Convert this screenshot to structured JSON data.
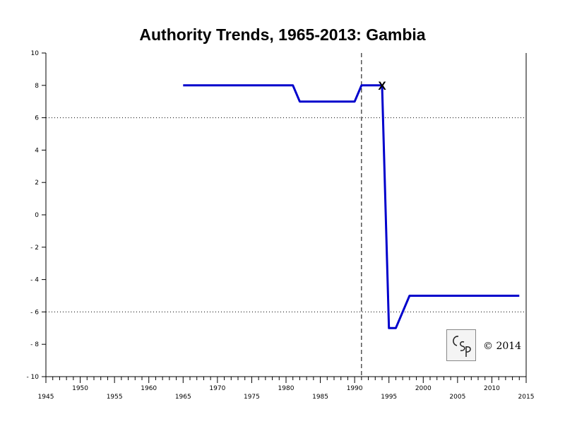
{
  "chart_data": {
    "type": "line",
    "title": "Authority Trends, 1965-2013: Gambia",
    "xlabel": "",
    "ylabel": "",
    "xlim": [
      1945,
      2015
    ],
    "ylim": [
      -10,
      10
    ],
    "x_ticks_lower": [
      1945,
      1955,
      1965,
      1975,
      1985,
      1995,
      2005,
      2015
    ],
    "x_ticks_upper": [
      1950,
      1960,
      1970,
      1980,
      1990,
      2000,
      2010
    ],
    "y_ticks": [
      10,
      8,
      6,
      4,
      2,
      0,
      -2,
      -4,
      -6,
      -8,
      -10
    ],
    "reference_lines_y": [
      6,
      -6
    ],
    "event_line_x": 1991,
    "marker": {
      "label": "X",
      "x": 1994,
      "y": 8
    },
    "series": [
      {
        "color": "#0000cc",
        "x": [
          1965,
          1981,
          1982,
          1990,
          1991,
          1994,
          1995,
          1996,
          1998,
          2014
        ],
        "y": [
          8,
          8,
          7,
          7,
          8,
          8,
          -7,
          -7,
          -5,
          -5
        ]
      }
    ],
    "logo_text": "CSP",
    "copyright": "© 2014"
  }
}
